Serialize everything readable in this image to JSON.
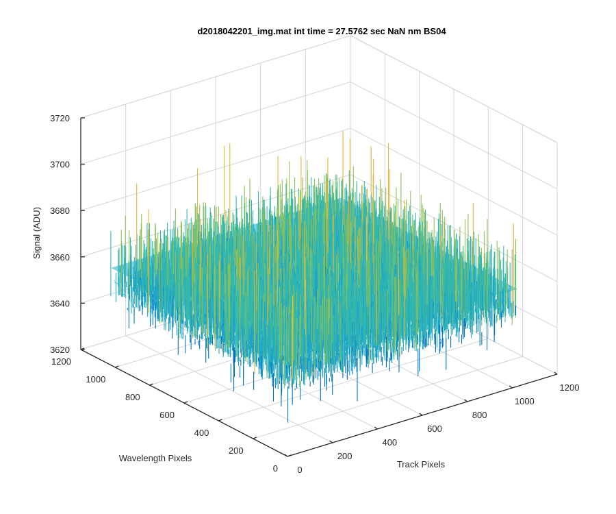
{
  "chart_data": {
    "type": "surface",
    "title": "d2018042201_img.mat int time = 27.5762 sec   NaN nm BS04",
    "xlabel": "Track Pixels",
    "ylabel": "Wavelength Pixels",
    "zlabel": "Signal (ADU)",
    "xlim": [
      0,
      1200
    ],
    "ylim": [
      0,
      1200
    ],
    "zlim": [
      3620,
      3720
    ],
    "x_ticks": [
      "0",
      "200",
      "400",
      "600",
      "800",
      "1000",
      "1200"
    ],
    "y_ticks": [
      "0",
      "200",
      "400",
      "600",
      "800",
      "1000",
      "1200"
    ],
    "z_ticks": [
      "3620",
      "3640",
      "3660",
      "3680",
      "3700",
      "3720"
    ],
    "grid": true,
    "colormap": "parula",
    "surface_extent": {
      "x": [
        0,
        1024
      ],
      "y": [
        0,
        1024
      ]
    },
    "signal_mean": 3662,
    "signal_range": [
      3622,
      3715
    ],
    "colors": {
      "low": "#0072bd",
      "mid_low": "#1ca5c8",
      "mid": "#35b8aa",
      "mid_high": "#8fc055",
      "high": "#e0b83a"
    }
  }
}
